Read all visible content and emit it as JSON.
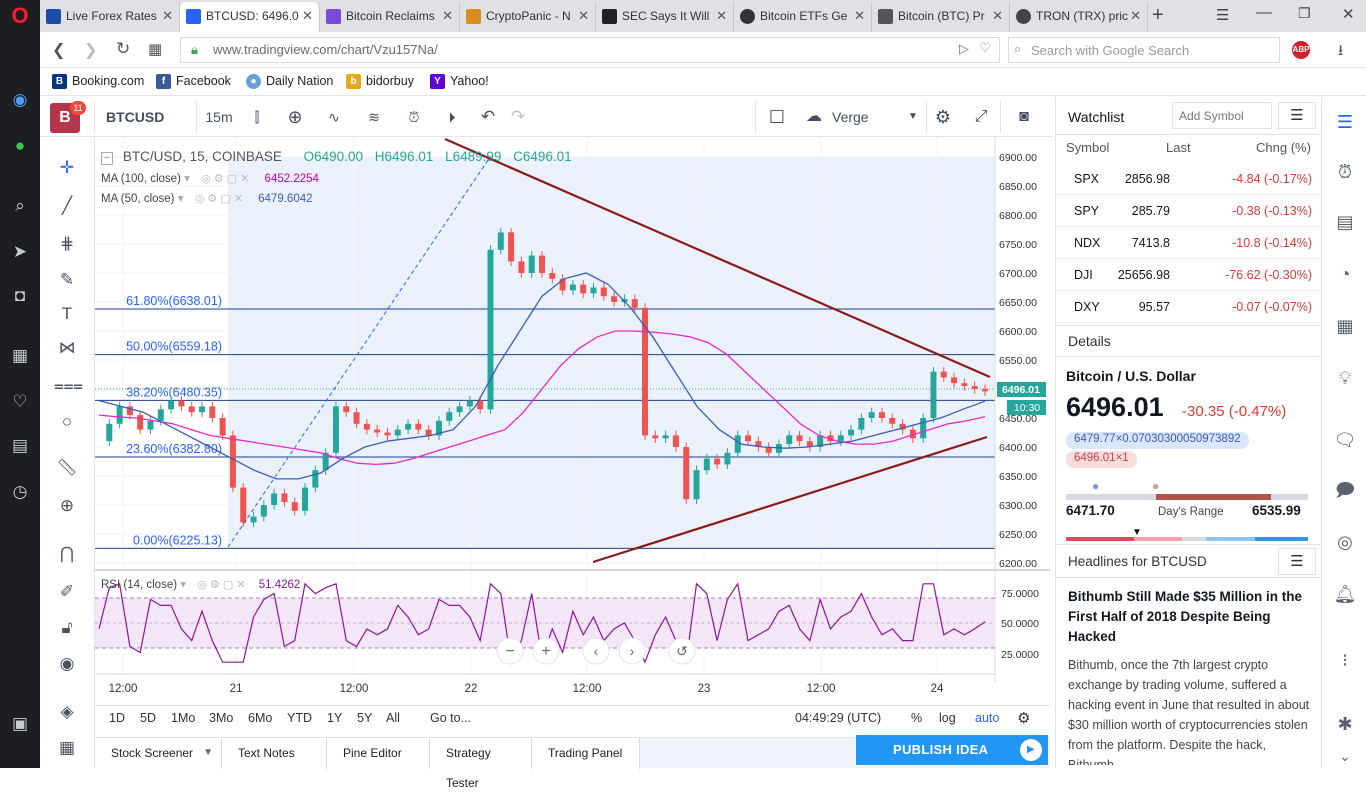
{
  "browser": {
    "tabs": [
      {
        "title": "Live Forex Rates",
        "fav": "#1e4aa8"
      },
      {
        "title": "BTCUSD: 6496.0",
        "fav": "#2962ff"
      },
      {
        "title": "Bitcoin Reclaims",
        "fav": "#7a4ad8"
      },
      {
        "title": "CryptoPanic - N",
        "fav": "#d98b1e"
      },
      {
        "title": "SEC Says It Will",
        "fav": "#222222"
      },
      {
        "title": "Bitcoin ETFs Ge",
        "fav": "#333333"
      },
      {
        "title": "Bitcoin (BTC) Pr",
        "fav": "#555555"
      },
      {
        "title": "TRON (TRX) pric",
        "fav": "#444444"
      }
    ],
    "url": "www.tradingview.com/chart/Vzu157Na/",
    "search_placeholder": "Search with Google Search",
    "bookmarks": [
      "Booking.com",
      "Facebook",
      "Daily Nation",
      "bidorbuy",
      "Yahoo!"
    ]
  },
  "tv": {
    "symbol": "BTCUSD",
    "interval": "15m",
    "compare_symbol": "Verge XVG",
    "notif_count": "11",
    "logo_letter": "B"
  },
  "legend": {
    "main": "BTC/USD, 15, COINBASE",
    "o": "O6490.00",
    "h": "H6496.01",
    "l": "L6489.99",
    "c": "C6496.01",
    "ma100_label": "MA (100, close)",
    "ma100_value": "6452.2254",
    "ma50_label": "MA (50, close)",
    "ma50_value": "6479.6042",
    "rsi_label": "RSI (14, close)",
    "rsi_value": "51.4262"
  },
  "chart_data": {
    "type": "line",
    "title": "BTC/USD, 15, COINBASE",
    "ylim": [
      6200,
      6900
    ],
    "y_ticks": [
      6900,
      6850,
      6800,
      6750,
      6700,
      6650,
      6600,
      6550,
      6500,
      6450,
      6400,
      6350,
      6300,
      6250,
      6200
    ],
    "y_tick_labels": [
      "6900.00",
      "6850.00",
      "6800.00",
      "6750.00",
      "6700.00",
      "6650.00",
      "6600.00",
      "6550.00",
      "6500.00",
      "6450.00",
      "6400.00",
      "6350.00",
      "6300.00",
      "6250.00",
      "6200.00"
    ],
    "x_tick_labels": [
      "12:00",
      "21",
      "12:00",
      "22",
      "12:00",
      "23",
      "12:00",
      "24"
    ],
    "fib_levels": [
      {
        "label": "61.80%(6638.01)",
        "value": 6638.01
      },
      {
        "label": "50.00%(6559.18)",
        "value": 6559.18
      },
      {
        "label": "38.20%(6480.35)",
        "value": 6480.35
      },
      {
        "label": "23.60%(6382.80)",
        "value": 6382.8
      },
      {
        "label": "0.00%(6225.13)",
        "value": 6225.13
      }
    ],
    "price_label": "6496.01",
    "countdown": "10:30",
    "rsi_ticks": [
      "75.0000",
      "50.0000",
      "25.0000"
    ],
    "close_series": [
      6410,
      6440,
      6470,
      6455,
      6430,
      6445,
      6465,
      6480,
      6470,
      6460,
      6470,
      6450,
      6420,
      6330,
      6270,
      6280,
      6300,
      6320,
      6305,
      6290,
      6330,
      6360,
      6390,
      6470,
      6460,
      6440,
      6430,
      6425,
      6420,
      6430,
      6440,
      6430,
      6420,
      6445,
      6460,
      6470,
      6480,
      6465,
      6740,
      6770,
      6720,
      6700,
      6730,
      6700,
      6690,
      6670,
      6680,
      6665,
      6675,
      6660,
      6650,
      6655,
      6640,
      6420,
      6415,
      6420,
      6400,
      6310,
      6360,
      6380,
      6370,
      6390,
      6420,
      6410,
      6400,
      6390,
      6405,
      6420,
      6410,
      6400,
      6420,
      6410,
      6420,
      6430,
      6450,
      6460,
      6450,
      6440,
      6430,
      6415,
      6450,
      6530,
      6520,
      6510,
      6505,
      6500,
      6496
    ],
    "ma100_series": [
      6455,
      6452,
      6450,
      6445,
      6440,
      6430,
      6420,
      6415,
      6410,
      6405,
      6400,
      6395,
      6390,
      6380,
      6372,
      6370,
      6372,
      6380,
      6390,
      6400,
      6410,
      6420,
      6430,
      6460,
      6500,
      6540,
      6570,
      6590,
      6600,
      6600,
      6598,
      6595,
      6590,
      6580,
      6560,
      6530,
      6500,
      6470,
      6440,
      6420,
      6410,
      6405,
      6405,
      6410,
      6420,
      6430,
      6440,
      6445,
      6452
    ],
    "ma50_series": [
      6480,
      6470,
      6460,
      6440,
      6420,
      6400,
      6380,
      6360,
      6345,
      6345,
      6355,
      6380,
      6400,
      6410,
      6415,
      6420,
      6430,
      6470,
      6540,
      6600,
      6660,
      6690,
      6700,
      6680,
      6640,
      6590,
      6530,
      6470,
      6430,
      6405,
      6400,
      6398,
      6400,
      6405,
      6410,
      6420,
      6430,
      6440,
      6450,
      6465,
      6479
    ]
  },
  "range_buttons": [
    "1D",
    "5D",
    "1Mo",
    "3Mo",
    "6Mo",
    "YTD",
    "1Y",
    "5Y",
    "All",
    "Go to..."
  ],
  "clock": "04:49:29 (UTC)",
  "scale_opts": [
    "%",
    "log",
    "auto"
  ],
  "bottom_tabs": [
    "Stock Screener",
    "Text Notes",
    "Pine Editor",
    "Strategy Tester",
    "Trading Panel"
  ],
  "publish_label": "PUBLISH IDEA",
  "watchlist": {
    "title": "Watchlist",
    "add_placeholder": "Add Symbol",
    "headers": [
      "Symbol",
      "Last",
      "Chng (%)"
    ],
    "rows": [
      {
        "sym": "SPX",
        "last": "2856.98",
        "chg": "-4.84 (-0.17%)"
      },
      {
        "sym": "SPY",
        "last": "285.79",
        "chg": "-0.38 (-0.13%)"
      },
      {
        "sym": "NDX",
        "last": "7413.8",
        "chg": "-10.8 (-0.14%)"
      },
      {
        "sym": "DJI",
        "last": "25656.98",
        "chg": "-76.62 (-0.30%)"
      },
      {
        "sym": "DXY",
        "last": "95.57",
        "chg": "-0.07 (-0.07%)"
      }
    ]
  },
  "details": {
    "title": "Details",
    "name": "Bitcoin / U.S. Dollar",
    "price": "6496.01",
    "change": "-30.35 (-0.47%)",
    "tag1": "6479.77×0.07030300050973892",
    "tag2": "6496.01×1",
    "low": "6471.70",
    "range_label": "Day's Range",
    "high": "6535.99"
  },
  "headlines": {
    "title": "Headlines for BTCUSD",
    "headline": "Bithumb Still Made $35 Million in the First Half of 2018 Despite Being Hacked",
    "body": "Bithumb, once the 7th largest crypto exchange by trading volume, suffered a hacking event in June that resulted in about $30 million worth of cryptocurrencies stolen from the platform. Despite the hack, Bithumb"
  }
}
